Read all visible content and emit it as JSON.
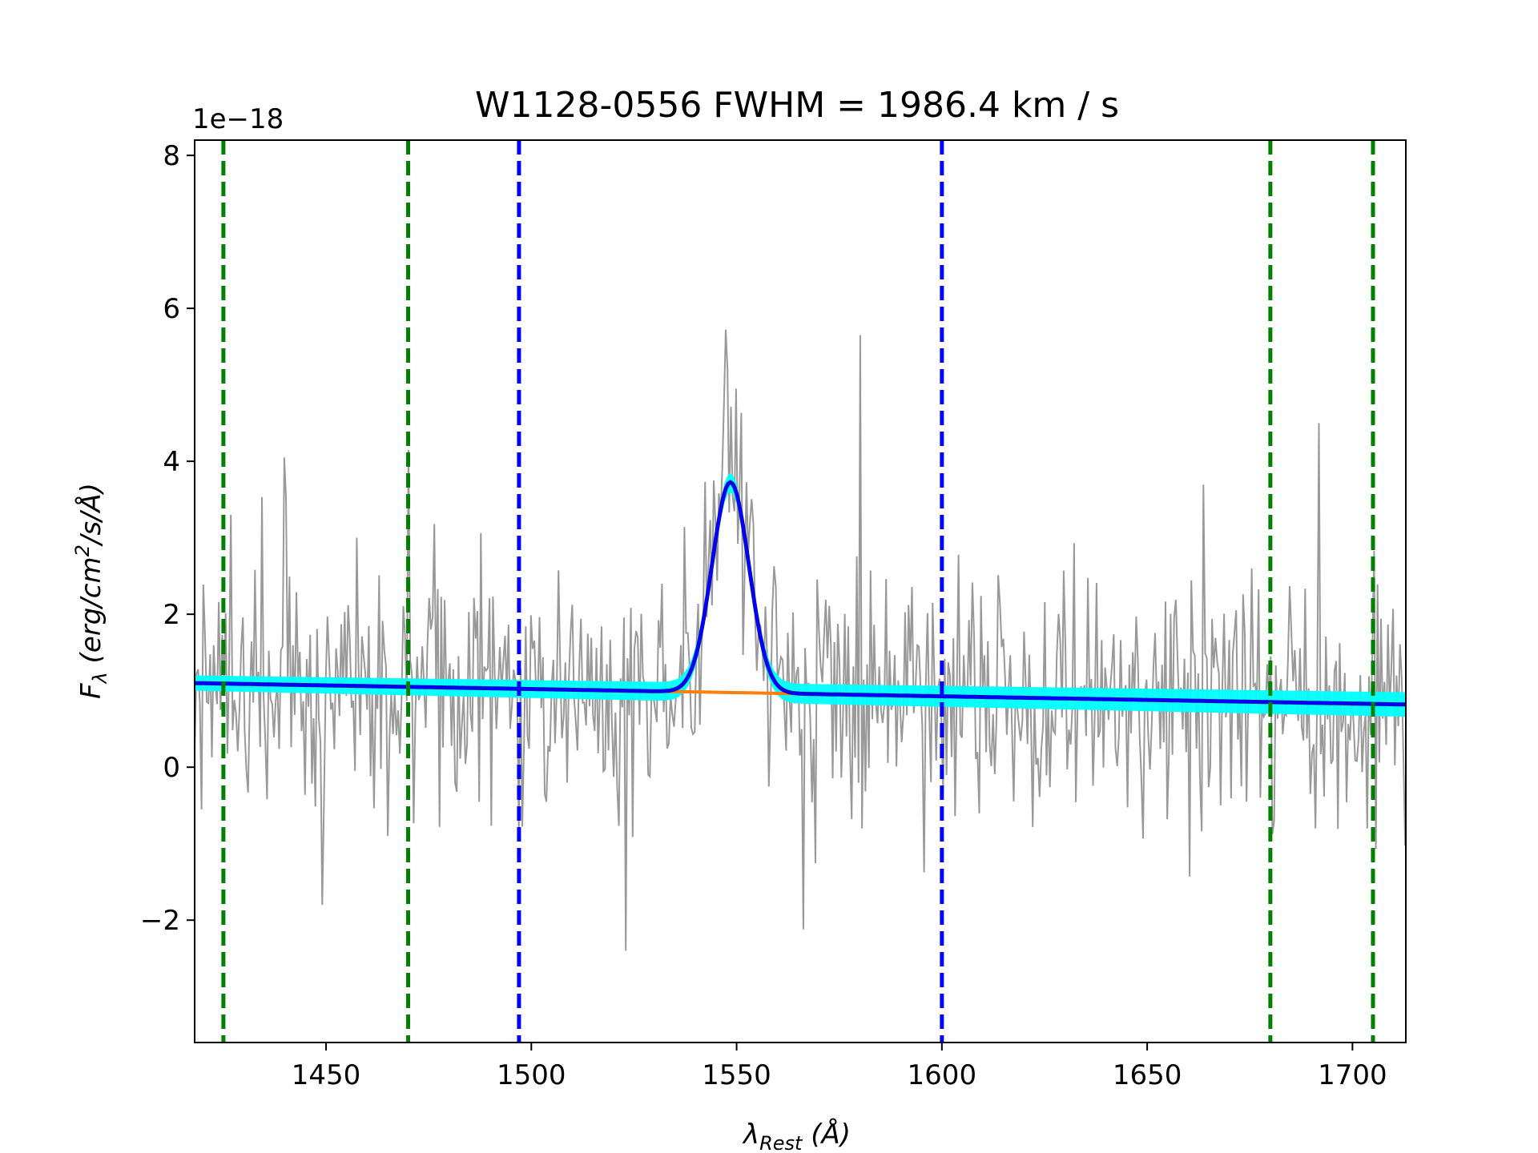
{
  "chart_data": {
    "type": "line",
    "title": "W1128-0556  FWHM = 1986.4 km / s",
    "xlabel_symbol": "λ",
    "xlabel_sub": "Rest",
    "xlabel_unit": " (Å)",
    "ylabel_symbol": "F",
    "ylabel_sub": "λ",
    "ylabel_unit_pre": " (erg/cm",
    "ylabel_unit_sup": "2",
    "ylabel_unit_post": "/s/Å)",
    "y_offset_text": "1e−18",
    "xlim": [
      1418,
      1713
    ],
    "ylim": [
      -3.6,
      8.2
    ],
    "x_ticks": [
      1450,
      1500,
      1550,
      1600,
      1650,
      1700
    ],
    "x_tick_labels": [
      "1450",
      "1500",
      "1550",
      "1600",
      "1650",
      "1700"
    ],
    "y_ticks": [
      -2,
      0,
      2,
      4,
      6,
      8
    ],
    "y_tick_labels": [
      "−2",
      "0",
      "2",
      "4",
      "6",
      "8"
    ],
    "grid": false,
    "vertical_lines": [
      {
        "x": 1425,
        "color": "#008000",
        "style": "dashed"
      },
      {
        "x": 1470,
        "color": "#008000",
        "style": "dashed"
      },
      {
        "x": 1497,
        "color": "#0000ff",
        "style": "dashed"
      },
      {
        "x": 1600,
        "color": "#0000ff",
        "style": "dashed"
      },
      {
        "x": 1680,
        "color": "#008000",
        "style": "dashed"
      },
      {
        "x": 1705,
        "color": "#008000",
        "style": "dashed"
      }
    ],
    "continuum": {
      "x": [
        1418,
        1713
      ],
      "y": [
        1.1,
        0.82
      ]
    },
    "emission_line": {
      "center": 1548.5,
      "amplitude": 2.75,
      "sigma": 4.5
    },
    "spectrum_noise_sigma": 0.8,
    "spectrum_spikes": [
      {
        "x": 1427,
        "y": 3.3
      },
      {
        "x": 1440,
        "y": 4.05
      },
      {
        "x": 1449,
        "y": -1.8
      },
      {
        "x": 1465,
        "y": -0.9
      },
      {
        "x": 1470,
        "y": 4.15
      },
      {
        "x": 1497,
        "y": -0.8
      },
      {
        "x": 1523,
        "y": -2.4
      },
      {
        "x": 1547,
        "y": 4.8
      },
      {
        "x": 1550,
        "y": 4.95
      },
      {
        "x": 1580,
        "y": 5.65
      },
      {
        "x": 1580.5,
        "y": -0.8
      },
      {
        "x": 1692,
        "y": 4.5
      },
      {
        "x": 1691,
        "y": -0.8
      },
      {
        "x": 1668,
        "y": -0.5
      }
    ],
    "colors": {
      "spectrum": "#999999",
      "band": "#00ffff",
      "continuum": "#ff7f0e",
      "fit": "#0000ff",
      "model_dark": "#1a1a6e",
      "axes": "#000000"
    }
  }
}
